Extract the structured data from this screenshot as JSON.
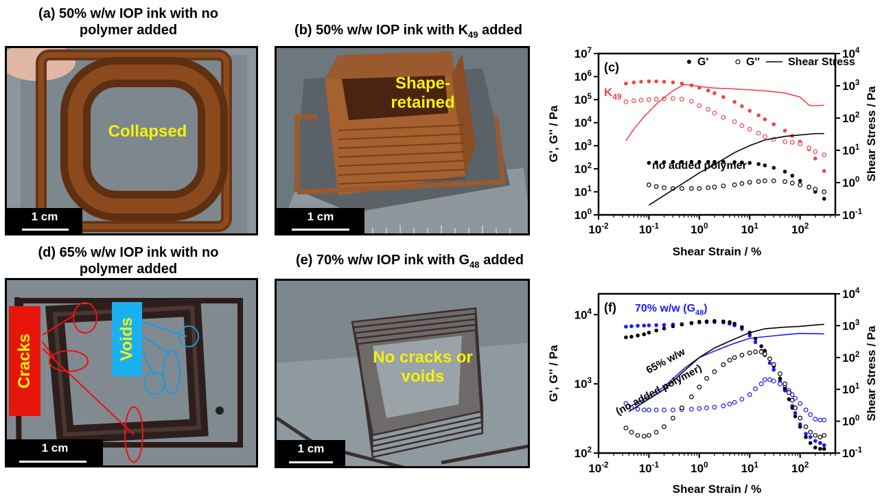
{
  "panels": {
    "a": {
      "caption_line1": "(a) 50% w/w IOP ink with no",
      "caption_line2": "polymer added",
      "label": "Collapsed",
      "scale": "1 cm"
    },
    "b": {
      "caption": "(b) 50% w/w IOP ink with K",
      "caption_sub": "49",
      "caption_end": " added",
      "label_line1": "Shape-",
      "label_line2": "retained",
      "scale": "1 cm"
    },
    "d": {
      "caption_line1": "(d) 65% w/w IOP ink with no",
      "caption_line2": "polymer added",
      "cracks": "Cracks",
      "voids": "Voids",
      "scale": "1 cm"
    },
    "e": {
      "caption": "(e) 70% w/w IOP ink with G",
      "caption_sub": "48",
      "caption_end": " added",
      "label_line1": "No cracks or",
      "label_line2": "voids",
      "scale": "1 cm"
    }
  },
  "chart_data": [
    {
      "type": "scatter",
      "panel_label": "(c)",
      "xlabel": "Shear Strain / %",
      "ylabel": "G', G'' / Pa",
      "y2label": "Shear Stress / Pa",
      "xscale": "log",
      "yscale": "log",
      "y2scale": "log",
      "xlim": [
        0.01,
        500
      ],
      "ylim": [
        1,
        10000000
      ],
      "y2lim": [
        0.1,
        10000
      ],
      "xticks": [
        "10",
        "10",
        "10",
        "10",
        "10"
      ],
      "xtick_exps": [
        "-2",
        "-1",
        "0",
        "1",
        "2"
      ],
      "yticks": [
        "10",
        "10",
        "10",
        "10",
        "10",
        "10",
        "10",
        "10"
      ],
      "ytick_exps": [
        "0",
        "1",
        "2",
        "3",
        "4",
        "5",
        "6",
        "7"
      ],
      "y2ticks": [
        "10",
        "10",
        "10",
        "10",
        "10",
        "10"
      ],
      "y2tick_exps": [
        "-1",
        "0",
        "1",
        "2",
        "3",
        "4"
      ],
      "legend": {
        "g1": "G'",
        "g2": "G''",
        "stress": "Shear Stress",
        "position": "top"
      },
      "annotations": {
        "k49": "K",
        "k49_sub": "49",
        "none": "no added polymer"
      },
      "colors": {
        "k49": "#f0444a",
        "none": "#000000"
      },
      "series": [
        {
          "group": "k49",
          "kind": "G1",
          "x": [
            0.035,
            0.05,
            0.07,
            0.1,
            0.14,
            0.2,
            0.3,
            0.45,
            0.7,
            1,
            1.5,
            2,
            3,
            5,
            7,
            10,
            15,
            20,
            30,
            50,
            70,
            100,
            150,
            200,
            300
          ],
          "values": [
            500000,
            560000,
            600000,
            620000,
            620000,
            600000,
            560000,
            500000,
            420000,
            330000,
            250000,
            190000,
            130000,
            80000,
            52000,
            33000,
            21000,
            14000,
            8500,
            4500,
            2700,
            1500,
            700,
            280,
            80
          ]
        },
        {
          "group": "k49",
          "kind": "G2",
          "x": [
            0.035,
            0.05,
            0.07,
            0.1,
            0.14,
            0.2,
            0.3,
            0.45,
            0.7,
            1,
            1.5,
            2,
            3,
            5,
            7,
            10,
            15,
            20,
            30,
            50,
            70,
            100,
            150,
            200,
            300
          ],
          "values": [
            80000,
            90000,
            95000,
            100000,
            105000,
            110000,
            112000,
            105000,
            85000,
            55000,
            38000,
            26000,
            17000,
            11000,
            7500,
            5200,
            3500,
            2500,
            1900,
            1500,
            1400,
            1200,
            800,
            550,
            400
          ]
        },
        {
          "group": "k49",
          "kind": "stress",
          "x": [
            0.035,
            0.05,
            0.08,
            0.15,
            0.3,
            0.5,
            0.7,
            1,
            2,
            5,
            10,
            20,
            50,
            100,
            150,
            200,
            300
          ],
          "values": [
            20,
            45,
            110,
            300,
            700,
            1100,
            1050,
            950,
            850,
            800,
            750,
            700,
            600,
            450,
            250,
            240,
            250
          ]
        },
        {
          "group": "none",
          "kind": "G1",
          "x": [
            0.1,
            0.14,
            0.2,
            0.3,
            0.45,
            0.7,
            1,
            1.5,
            2,
            3,
            5,
            7,
            10,
            15,
            20,
            30,
            50,
            70,
            100,
            150,
            200,
            300
          ],
          "values": [
            180,
            190,
            195,
            200,
            200,
            200,
            200,
            200,
            200,
            200,
            195,
            190,
            180,
            160,
            140,
            110,
            75,
            50,
            30,
            17,
            10,
            5
          ]
        },
        {
          "group": "none",
          "kind": "G2",
          "x": [
            0.1,
            0.14,
            0.2,
            0.3,
            0.45,
            0.7,
            1,
            1.5,
            2,
            3,
            5,
            7,
            10,
            15,
            20,
            30,
            50,
            70,
            100,
            150,
            200,
            300
          ],
          "values": [
            20,
            17,
            15,
            14,
            14,
            14,
            14,
            15,
            16,
            18,
            20,
            23,
            26,
            28,
            30,
            30,
            28,
            24,
            20,
            16,
            13,
            10
          ]
        },
        {
          "group": "none",
          "kind": "stress",
          "x": [
            0.1,
            0.2,
            0.5,
            1,
            2,
            5,
            10,
            20,
            50,
            100,
            200,
            300
          ],
          "values": [
            0.2,
            0.4,
            1.0,
            2.0,
            3.6,
            8.5,
            14,
            21,
            27,
            30,
            33,
            33
          ]
        }
      ]
    },
    {
      "type": "scatter",
      "panel_label": "(f)",
      "xlabel": "Shear Strain / %",
      "ylabel": "G', G'' / Pa",
      "y2label": "Shear Stress / Pa",
      "xscale": "log",
      "yscale": "log",
      "y2scale": "log",
      "xlim": [
        0.01,
        500
      ],
      "ylim": [
        100,
        20000
      ],
      "y2lim": [
        0.1,
        10000
      ],
      "xticks": [
        "10",
        "10",
        "10",
        "10",
        "10"
      ],
      "xtick_exps": [
        "-2",
        "-1",
        "0",
        "1",
        "2"
      ],
      "yticks": [
        "10",
        "10",
        "10"
      ],
      "ytick_exps": [
        "2",
        "3",
        "4"
      ],
      "y2ticks": [
        "10",
        "10",
        "10",
        "10",
        "10",
        "10"
      ],
      "y2tick_exps": [
        "-1",
        "0",
        "1",
        "2",
        "3",
        "4"
      ],
      "annotations": {
        "g48_a": "70% w/w (G",
        "g48_sub": "48",
        "g48_b": ")",
        "w65_line1": "65% w/w",
        "w65_line2": "(no added polymer)"
      },
      "colors": {
        "g48": "#1a1aff",
        "w65": "#000000"
      },
      "series": [
        {
          "group": "g48",
          "kind": "G1",
          "x": [
            0.035,
            0.045,
            0.06,
            0.08,
            0.1,
            0.14,
            0.2,
            0.3,
            0.45,
            0.7,
            1,
            1.4,
            2,
            3,
            4,
            5,
            7,
            10,
            13,
            17,
            20,
            25,
            30,
            40,
            50,
            60,
            70,
            80,
            100,
            130,
            160,
            200,
            250,
            300
          ],
          "values": [
            6700,
            6800,
            6900,
            6950,
            7000,
            7050,
            7100,
            7200,
            7300,
            7500,
            7700,
            7800,
            7800,
            7700,
            7400,
            7000,
            6200,
            5000,
            4000,
            3000,
            2600,
            2000,
            1600,
            1100,
            800,
            600,
            480,
            380,
            260,
            190,
            170,
            150,
            140,
            130
          ]
        },
        {
          "group": "g48",
          "kind": "G2",
          "x": [
            0.035,
            0.045,
            0.06,
            0.08,
            0.1,
            0.14,
            0.2,
            0.3,
            0.45,
            0.7,
            1,
            1.4,
            2,
            3,
            4,
            5,
            7,
            10,
            13,
            17,
            20,
            25,
            30,
            40,
            50,
            60,
            70,
            80,
            100,
            130,
            160,
            200,
            250,
            300
          ],
          "values": [
            520,
            450,
            430,
            420,
            420,
            420,
            420,
            420,
            425,
            430,
            440,
            450,
            460,
            480,
            510,
            540,
            600,
            700,
            850,
            1000,
            1150,
            1150,
            1100,
            1000,
            900,
            800,
            700,
            620,
            520,
            420,
            360,
            310,
            300,
            300
          ]
        },
        {
          "group": "g48",
          "kind": "stress",
          "x": [
            0.04,
            0.08,
            0.2,
            0.5,
            1,
            2,
            5,
            10,
            20,
            50,
            100,
            200,
            300
          ],
          "values": [
            2.8,
            5,
            12,
            45,
            100,
            160,
            280,
            400,
            450,
            520,
            570,
            560,
            550
          ]
        },
        {
          "group": "w65",
          "kind": "G1",
          "x": [
            0.035,
            0.045,
            0.06,
            0.08,
            0.1,
            0.14,
            0.2,
            0.3,
            0.45,
            0.7,
            1,
            1.4,
            2,
            3,
            4,
            5,
            7,
            10,
            13,
            17,
            20,
            25,
            30,
            40,
            50,
            60,
            70,
            80,
            100,
            130,
            160,
            200,
            250,
            300
          ],
          "values": [
            4700,
            4800,
            5000,
            5200,
            5500,
            5900,
            6300,
            6800,
            7200,
            7600,
            7900,
            8000,
            8100,
            8000,
            7800,
            7400,
            6600,
            5500,
            4500,
            3500,
            3000,
            2300,
            1800,
            1200,
            850,
            600,
            450,
            340,
            240,
            170,
            140,
            120,
            115,
            115
          ]
        },
        {
          "group": "w65",
          "kind": "G2",
          "x": [
            0.035,
            0.045,
            0.06,
            0.08,
            0.1,
            0.14,
            0.2,
            0.3,
            0.45,
            0.7,
            1,
            1.4,
            2,
            3,
            4,
            5,
            7,
            10,
            13,
            17,
            20,
            25,
            30,
            40,
            50,
            60,
            70,
            80,
            100,
            130,
            160,
            200,
            250,
            300
          ],
          "values": [
            230,
            200,
            180,
            175,
            180,
            200,
            240,
            320,
            450,
            650,
            900,
            1200,
            1500,
            1900,
            2200,
            2400,
            2600,
            2800,
            2900,
            2900,
            2700,
            2300,
            1900,
            1400,
            1000,
            750,
            580,
            450,
            320,
            240,
            200,
            180,
            170,
            180
          ]
        },
        {
          "group": "w65",
          "kind": "stress",
          "x": [
            0.04,
            0.08,
            0.2,
            0.5,
            1,
            2,
            5,
            10,
            20,
            50,
            100,
            200,
            300
          ],
          "values": [
            2,
            4,
            10,
            38,
            100,
            200,
            380,
            600,
            800,
            900,
            950,
            1050,
            1100
          ]
        }
      ]
    }
  ]
}
